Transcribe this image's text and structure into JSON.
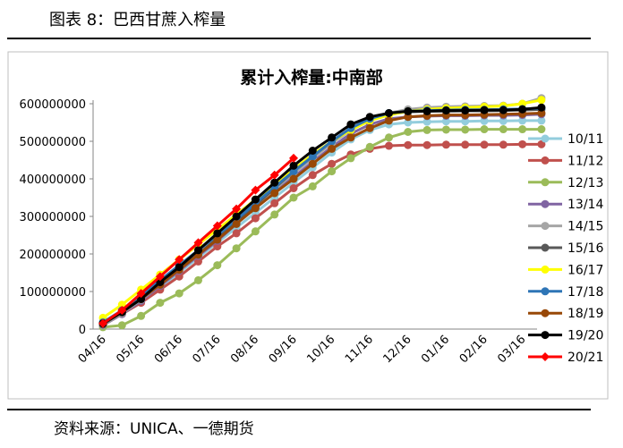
{
  "header": {
    "title": "图表 8：巴西甘蔗入榨量"
  },
  "footer": {
    "source": "资料来源：UNICA、一德期货"
  },
  "chart_data": {
    "type": "line",
    "title": "累计入榨量:中南部",
    "categories": [
      "04/16",
      null,
      "05/16",
      null,
      "06/16",
      null,
      "07/16",
      null,
      "08/16",
      null,
      "09/16",
      null,
      "10/16",
      null,
      "11/16",
      null,
      "12/16",
      null,
      "01/16",
      null,
      "02/16",
      null,
      "03/16",
      null
    ],
    "ylim": [
      0,
      600000000
    ],
    "yticks": [
      0,
      100000000,
      200000000,
      300000000,
      400000000,
      500000000,
      600000000
    ],
    "grid": false,
    "legend": "right",
    "series": [
      {
        "name": "10/11",
        "color": "#93cddd",
        "marker": "circle",
        "values": [
          10000000,
          40000000,
          75000000,
          110000000,
          150000000,
          190000000,
          230000000,
          270000000,
          310000000,
          350000000,
          390000000,
          430000000,
          470000000,
          505000000,
          530000000,
          545000000,
          550000000,
          552000000,
          553000000,
          553000000,
          554000000,
          554000000,
          555000000,
          555000000
        ]
      },
      {
        "name": "11/12",
        "color": "#c0504d",
        "marker": "circle",
        "values": [
          10000000,
          40000000,
          70000000,
          105000000,
          140000000,
          180000000,
          220000000,
          255000000,
          295000000,
          335000000,
          375000000,
          410000000,
          440000000,
          465000000,
          480000000,
          488000000,
          490000000,
          490000000,
          491000000,
          491000000,
          491000000,
          491000000,
          492000000,
          492000000
        ]
      },
      {
        "name": "12/13",
        "color": "#9bbb59",
        "marker": "circle",
        "values": [
          5000000,
          10000000,
          35000000,
          70000000,
          95000000,
          130000000,
          170000000,
          215000000,
          260000000,
          305000000,
          350000000,
          380000000,
          420000000,
          455000000,
          485000000,
          510000000,
          525000000,
          530000000,
          531000000,
          531000000,
          532000000,
          532000000,
          532000000,
          532000000
        ]
      },
      {
        "name": "13/14",
        "color": "#8064a2",
        "marker": "circle",
        "values": [
          10000000,
          40000000,
          75000000,
          115000000,
          155000000,
          195000000,
          235000000,
          280000000,
          325000000,
          365000000,
          405000000,
          445000000,
          485000000,
          520000000,
          545000000,
          560000000,
          565000000,
          567000000,
          568000000,
          568000000,
          569000000,
          569000000,
          570000000,
          572000000
        ]
      },
      {
        "name": "14/15",
        "color": "#a6a6a6",
        "marker": "circle",
        "values": [
          10000000,
          42000000,
          78000000,
          118000000,
          158000000,
          198000000,
          240000000,
          285000000,
          330000000,
          372000000,
          415000000,
          455000000,
          495000000,
          530000000,
          555000000,
          575000000,
          585000000,
          590000000,
          592000000,
          593000000,
          594000000,
          595000000,
          600000000,
          615000000
        ]
      },
      {
        "name": "15/16",
        "color": "#595959",
        "marker": "circle",
        "values": [
          12000000,
          45000000,
          80000000,
          120000000,
          160000000,
          200000000,
          242000000,
          285000000,
          330000000,
          375000000,
          420000000,
          460000000,
          500000000,
          535000000,
          560000000,
          575000000,
          578000000,
          580000000,
          580000000,
          581000000,
          581000000,
          582000000,
          583000000,
          585000000
        ]
      },
      {
        "name": "16/17",
        "color": "#ffff00",
        "marker": "circle",
        "values": [
          30000000,
          65000000,
          105000000,
          145000000,
          185000000,
          225000000,
          265000000,
          305000000,
          345000000,
          385000000,
          425000000,
          465000000,
          500000000,
          530000000,
          555000000,
          570000000,
          580000000,
          585000000,
          588000000,
          590000000,
          592000000,
          594000000,
          600000000,
          610000000
        ]
      },
      {
        "name": "17/18",
        "color": "#2e75b6",
        "marker": "circle",
        "values": [
          18000000,
          50000000,
          90000000,
          130000000,
          170000000,
          210000000,
          250000000,
          292000000,
          335000000,
          378000000,
          420000000,
          460000000,
          500000000,
          535000000,
          560000000,
          575000000,
          580000000,
          582000000,
          583000000,
          584000000,
          584000000,
          585000000,
          586000000,
          588000000
        ]
      },
      {
        "name": "18/19",
        "color": "#984807",
        "marker": "circle",
        "values": [
          15000000,
          45000000,
          80000000,
          118000000,
          158000000,
          198000000,
          238000000,
          280000000,
          322000000,
          362000000,
          400000000,
          440000000,
          480000000,
          510000000,
          535000000,
          555000000,
          565000000,
          568000000,
          570000000,
          570000000,
          571000000,
          572000000,
          573000000,
          575000000
        ]
      },
      {
        "name": "19/20",
        "color": "#000000",
        "marker": "circle",
        "values": [
          15000000,
          45000000,
          80000000,
          125000000,
          165000000,
          210000000,
          255000000,
          300000000,
          345000000,
          390000000,
          435000000,
          475000000,
          510000000,
          545000000,
          565000000,
          575000000,
          580000000,
          580000000,
          582000000,
          582000000,
          583000000,
          583000000,
          585000000,
          590000000
        ]
      },
      {
        "name": "20/21",
        "color": "#ff0000",
        "marker": "diamond",
        "values": [
          15000000,
          50000000,
          95000000,
          140000000,
          185000000,
          230000000,
          275000000,
          320000000,
          370000000,
          410000000,
          455000000,
          null,
          null,
          null,
          null,
          null,
          null,
          null,
          null,
          null,
          null,
          null,
          null,
          null
        ]
      }
    ]
  }
}
